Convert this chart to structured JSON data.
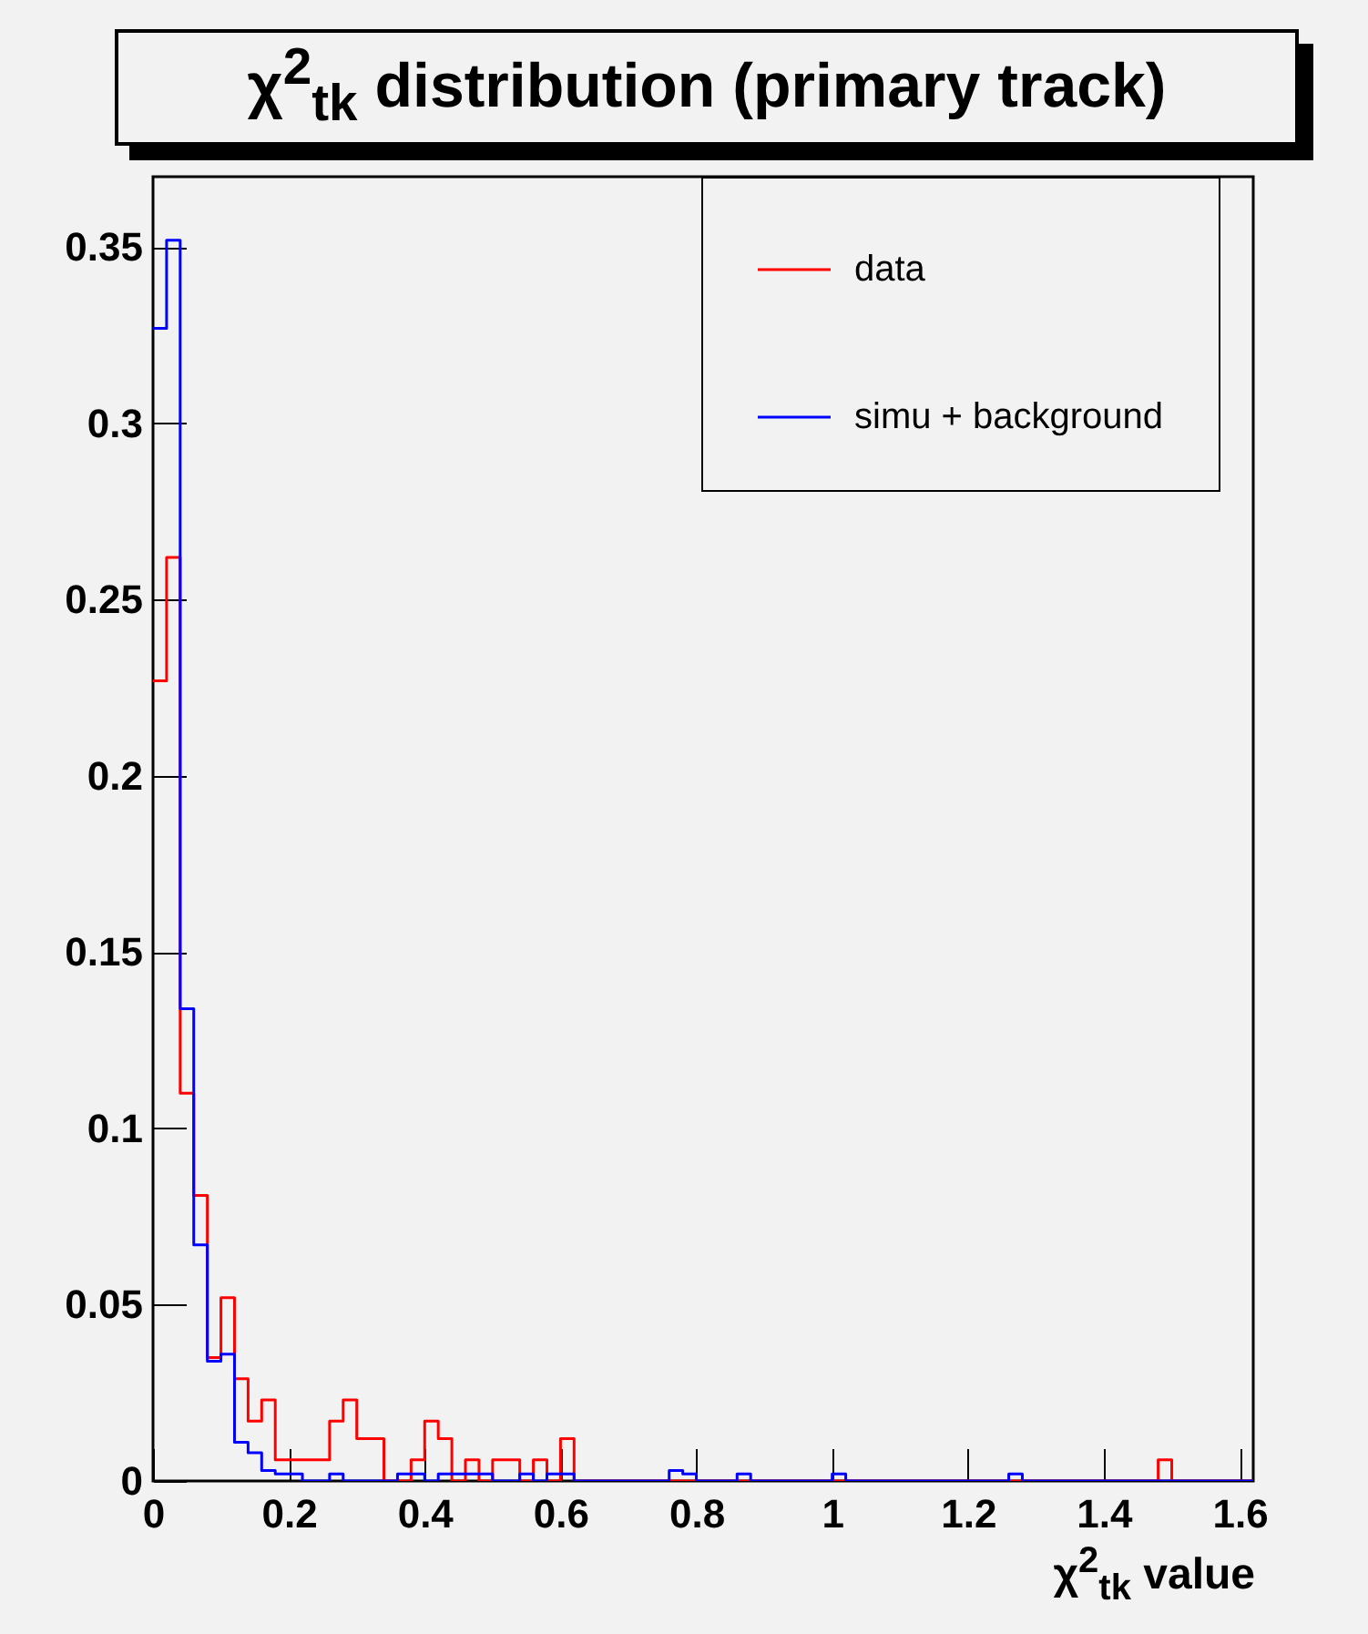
{
  "chart_data": {
    "type": "histogram",
    "title": "χ$^{2}$$_{tk}$ distribution (primary track)",
    "xlabel": "χ$^{2}$$_{tk}$ value",
    "bins": [
      0,
      0.02,
      0.04,
      0.06,
      0.08,
      0.1,
      0.12,
      0.14,
      0.16,
      0.18,
      0.2,
      0.22,
      0.24,
      0.26,
      0.28,
      0.3,
      0.32,
      0.34,
      0.36,
      0.38,
      0.4,
      0.42,
      0.44,
      0.46,
      0.48,
      0.5,
      0.52,
      0.54,
      0.56,
      0.58,
      0.6,
      0.62,
      0.64,
      0.66,
      0.68,
      0.7,
      0.72,
      0.74,
      0.76,
      0.78,
      0.8,
      0.82,
      0.84,
      0.86,
      0.88,
      0.9,
      0.92,
      0.94,
      0.96,
      0.98,
      1,
      1.02,
      1.04,
      1.06,
      1.08,
      1.1,
      1.12,
      1.14,
      1.16,
      1.18,
      1.2,
      1.22,
      1.24,
      1.26,
      1.28,
      1.3,
      1.32,
      1.34,
      1.36,
      1.38,
      1.4,
      1.42,
      1.44,
      1.46,
      1.48,
      1.5,
      1.52,
      1.54,
      1.56,
      1.58,
      1.6,
      1.62
    ],
    "series": [
      {
        "name": "data",
        "color": "#ff0000",
        "values": [
          0.227,
          0.262,
          0.11,
          0.081,
          0.035,
          0.052,
          0.029,
          0.017,
          0.023,
          0.006,
          0.006,
          0.006,
          0.006,
          0.017,
          0.023,
          0.012,
          0.012,
          0,
          0,
          0.006,
          0.017,
          0.012,
          0,
          0.006,
          0,
          0.006,
          0.006,
          0,
          0.006,
          0,
          0.012,
          0,
          0,
          0,
          0,
          0,
          0,
          0,
          0,
          0,
          0,
          0,
          0,
          0,
          0,
          0,
          0,
          0,
          0,
          0,
          0,
          0,
          0,
          0,
          0,
          0,
          0,
          0,
          0,
          0,
          0,
          0,
          0,
          0,
          0,
          0,
          0,
          0,
          0,
          0,
          0,
          0,
          0,
          0,
          0.006,
          0,
          0,
          0,
          0,
          0,
          0
        ]
      },
      {
        "name": "simu + background",
        "color": "#0000ff",
        "values": [
          0.327,
          0.352,
          0.134,
          0.067,
          0.034,
          0.036,
          0.011,
          0.008,
          0.003,
          0.002,
          0.002,
          0,
          0,
          0.002,
          0,
          0,
          0,
          0,
          0.002,
          0.002,
          0,
          0.002,
          0.002,
          0.002,
          0.002,
          0,
          0,
          0.002,
          0,
          0.002,
          0.002,
          0,
          0,
          0,
          0,
          0,
          0,
          0,
          0.003,
          0.002,
          0,
          0,
          0,
          0.002,
          0,
          0,
          0,
          0,
          0,
          0,
          0.002,
          0,
          0,
          0,
          0,
          0,
          0,
          0,
          0,
          0,
          0,
          0,
          0,
          0.002,
          0,
          0,
          0,
          0,
          0,
          0,
          0,
          0,
          0,
          0,
          0,
          0,
          0,
          0,
          0,
          0,
          0
        ]
      }
    ],
    "xlim": [
      0,
      1.62
    ],
    "ylim": [
      0,
      0.37
    ],
    "xticks": [
      0,
      0.2,
      0.4,
      0.6,
      0.8,
      1,
      1.2,
      1.4,
      1.6
    ],
    "yticks": [
      0,
      0.05,
      0.1,
      0.15,
      0.2,
      0.25,
      0.3,
      0.35
    ],
    "legend": "top right"
  }
}
